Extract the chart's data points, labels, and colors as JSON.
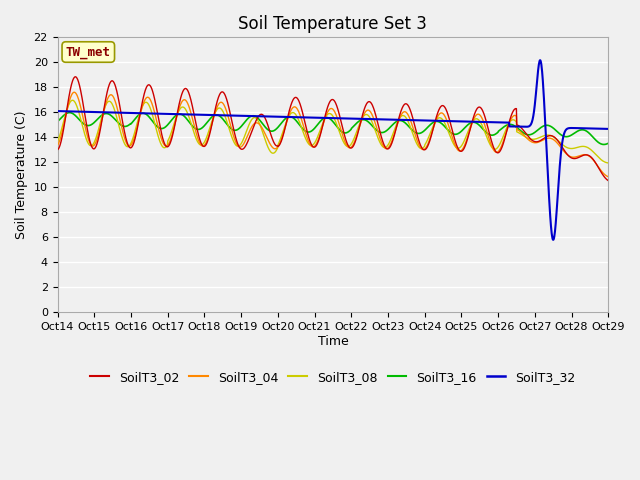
{
  "title": "Soil Temperature Set 3",
  "xlabel": "Time",
  "ylabel": "Soil Temperature (C)",
  "ylim": [
    0,
    22
  ],
  "xlim": [
    0,
    15
  ],
  "annotation": "TW_met",
  "annotation_color": "#8b0000",
  "annotation_bg": "#ffffcc",
  "annotation_edge": "#999900",
  "bg_color": "#f0f0f0",
  "plot_bg_color": "#f0f0f0",
  "grid_color": "#ffffff",
  "series_colors": {
    "SoilT3_02": "#cc0000",
    "SoilT3_04": "#ff8800",
    "SoilT3_08": "#cccc00",
    "SoilT3_16": "#00bb00",
    "SoilT3_32": "#0000cc"
  },
  "xtick_labels": [
    "Oct 14",
    "Oct 15",
    "Oct 16",
    "Oct 17",
    "Oct 18",
    "Oct 19",
    "Oct 20",
    "Oct 21",
    "Oct 22",
    "Oct 23",
    "Oct 24",
    "Oct 25",
    "Oct 26",
    "Oct 27",
    "Oct 28",
    "Oct 29"
  ],
  "yticks": [
    0,
    2,
    4,
    6,
    8,
    10,
    12,
    14,
    16,
    18,
    20,
    22
  ],
  "title_fontsize": 12,
  "axis_fontsize": 9,
  "tick_fontsize": 8,
  "legend_fontsize": 9
}
